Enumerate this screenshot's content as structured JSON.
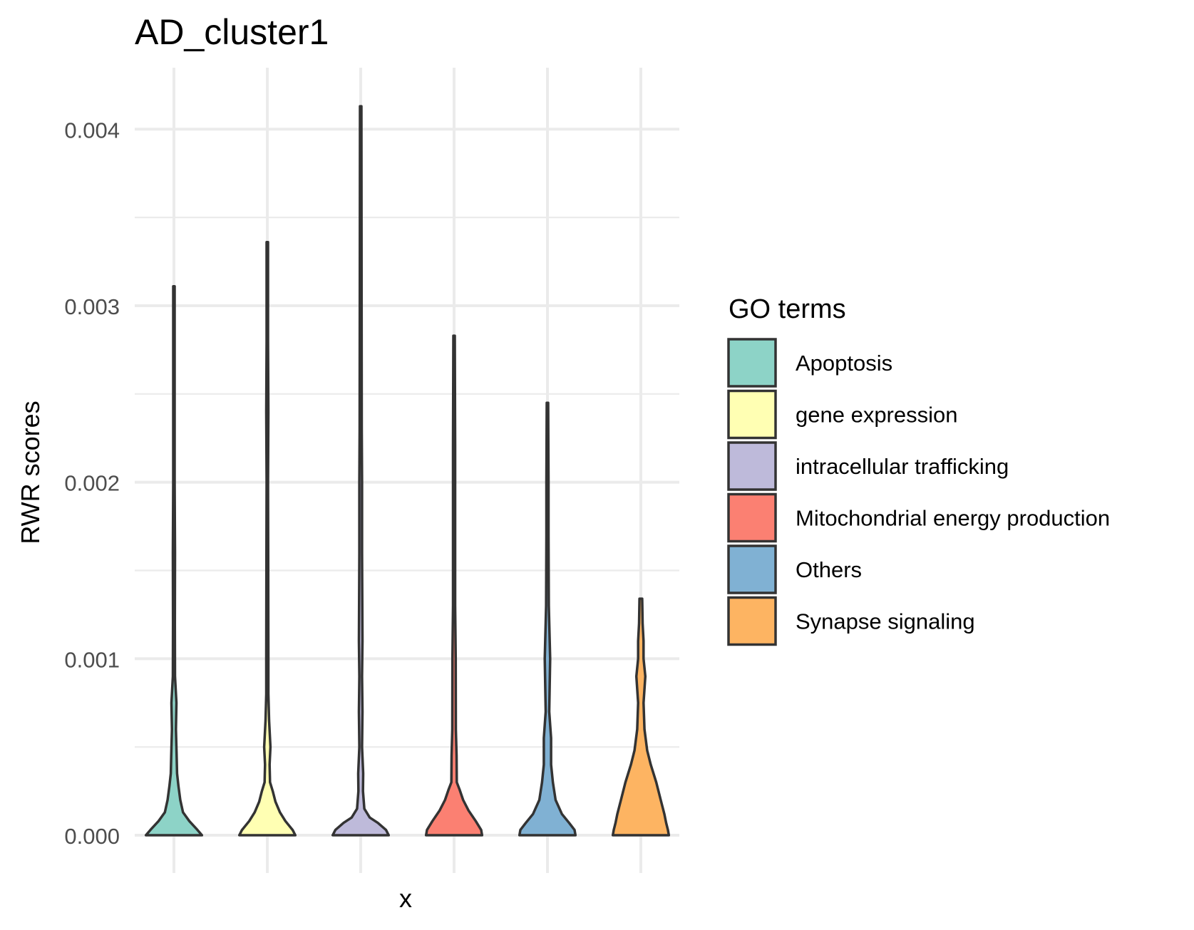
{
  "chart_data": {
    "type": "violin",
    "title": "AD_cluster1",
    "xlabel": "x",
    "ylabel": "RWR scores",
    "ylim": [
      -0.00013,
      0.0042
    ],
    "yticks": [
      0.0,
      0.001,
      0.002,
      0.003,
      0.004
    ],
    "ytick_labels": [
      "0.000",
      "0.001",
      "0.002",
      "0.003",
      "0.004"
    ],
    "grid": true,
    "legend": {
      "title": "GO terms",
      "position": "right"
    },
    "series": [
      {
        "name": "Apoptosis",
        "color": "#8DD3C7",
        "max": 0.00311,
        "profile": [
          [
            0,
            0.31
          ],
          [
            3e-05,
            0.26
          ],
          [
            8e-05,
            0.17
          ],
          [
            0.00013,
            0.1
          ],
          [
            0.0002,
            0.07
          ],
          [
            0.00028,
            0.05
          ],
          [
            0.00035,
            0.035
          ],
          [
            0.00045,
            0.03
          ],
          [
            0.0006,
            0.022
          ],
          [
            0.00075,
            0.028
          ],
          [
            0.0009,
            0.012
          ],
          [
            0.0012,
            0.01
          ],
          [
            0.0016,
            0.012
          ],
          [
            0.002,
            0.008
          ],
          [
            0.0025,
            0.008
          ],
          [
            0.00311,
            0.008
          ]
        ]
      },
      {
        "name": "gene expression",
        "color": "#FFFFB3",
        "max": 0.00336,
        "profile": [
          [
            0,
            0.31
          ],
          [
            3e-05,
            0.28
          ],
          [
            8e-05,
            0.2
          ],
          [
            0.00013,
            0.14
          ],
          [
            0.00019,
            0.09
          ],
          [
            0.00025,
            0.06
          ],
          [
            0.0003,
            0.03
          ],
          [
            0.0004,
            0.025
          ],
          [
            0.0005,
            0.035
          ],
          [
            0.00065,
            0.02
          ],
          [
            0.0008,
            0.012
          ],
          [
            0.001,
            0.012
          ],
          [
            0.0015,
            0.01
          ],
          [
            0.002,
            0.008
          ],
          [
            0.0024,
            0.012
          ],
          [
            0.0028,
            0.008
          ],
          [
            0.00336,
            0.008
          ]
        ]
      },
      {
        "name": "intracellular trafficking",
        "color": "#BEBADA",
        "max": 0.00413,
        "profile": [
          [
            0,
            0.31
          ],
          [
            3e-05,
            0.28
          ],
          [
            7e-05,
            0.19
          ],
          [
            0.0001,
            0.1
          ],
          [
            0.00015,
            0.04
          ],
          [
            0.00025,
            0.025
          ],
          [
            0.00035,
            0.028
          ],
          [
            0.0005,
            0.015
          ],
          [
            0.0007,
            0.02
          ],
          [
            0.0009,
            0.015
          ],
          [
            0.0011,
            0.02
          ],
          [
            0.0016,
            0.015
          ],
          [
            0.002,
            0.015
          ],
          [
            0.0023,
            0.012
          ],
          [
            0.003,
            0.01
          ],
          [
            0.00413,
            0.008
          ]
        ]
      },
      {
        "name": "Mitochondrial energy production",
        "color": "#FB8072",
        "max": 0.00283,
        "profile": [
          [
            0,
            0.31
          ],
          [
            3e-05,
            0.3
          ],
          [
            8e-05,
            0.24
          ],
          [
            0.00014,
            0.16
          ],
          [
            0.0002,
            0.1
          ],
          [
            0.00026,
            0.06
          ],
          [
            0.0003,
            0.03
          ],
          [
            0.00045,
            0.028
          ],
          [
            0.0006,
            0.02
          ],
          [
            0.001,
            0.018
          ],
          [
            0.0013,
            0.012
          ],
          [
            0.0017,
            0.012
          ],
          [
            0.0022,
            0.012
          ],
          [
            0.00283,
            0.008
          ]
        ]
      },
      {
        "name": "Others",
        "color": "#80B1D3",
        "max": 0.00245,
        "profile": [
          [
            0,
            0.31
          ],
          [
            3e-05,
            0.3
          ],
          [
            7e-05,
            0.24
          ],
          [
            0.00012,
            0.16
          ],
          [
            0.0002,
            0.09
          ],
          [
            0.0003,
            0.06
          ],
          [
            0.0004,
            0.04
          ],
          [
            0.00055,
            0.04
          ],
          [
            0.0007,
            0.02
          ],
          [
            0.001,
            0.03
          ],
          [
            0.0013,
            0.015
          ],
          [
            0.0017,
            0.012
          ],
          [
            0.002,
            0.012
          ],
          [
            0.00245,
            0.008
          ]
        ]
      },
      {
        "name": "Synapse signaling",
        "color": "#FDB462",
        "max": 0.00134,
        "profile": [
          [
            0,
            0.31
          ],
          [
            3e-05,
            0.3
          ],
          [
            7e-05,
            0.28
          ],
          [
            0.00012,
            0.26
          ],
          [
            0.0002,
            0.22
          ],
          [
            0.0003,
            0.17
          ],
          [
            0.0004,
            0.11
          ],
          [
            0.00048,
            0.07
          ],
          [
            0.0006,
            0.04
          ],
          [
            0.00075,
            0.03
          ],
          [
            0.0009,
            0.05
          ],
          [
            0.001,
            0.03
          ],
          [
            0.0011,
            0.03
          ],
          [
            0.0012,
            0.02
          ],
          [
            0.00134,
            0.015
          ]
        ]
      }
    ]
  }
}
